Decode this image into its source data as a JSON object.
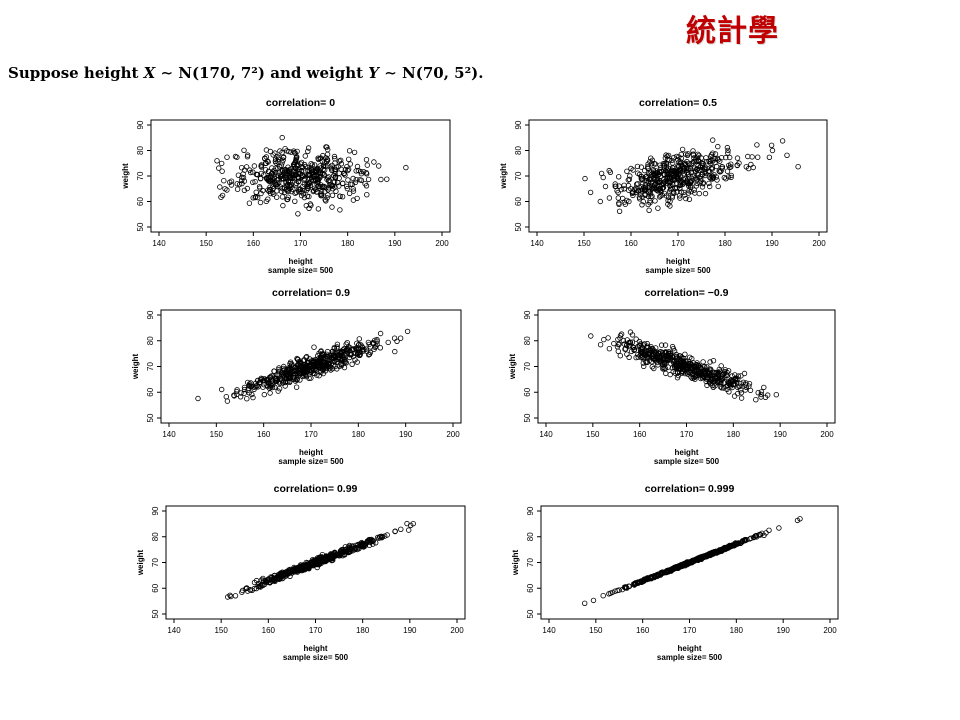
{
  "header": {
    "logo_text": "統計學",
    "statement": {
      "lead": "Suppose height",
      "x_var": "X",
      "x_dist": "∼ N(170, 7²)",
      "mid": "and weight",
      "y_var": "Y",
      "y_dist": "∼ N(70, 5²)."
    }
  },
  "colors": {
    "logo": "#c00000",
    "points": "#000000",
    "frame": "#000000"
  },
  "chart_data": [
    {
      "type": "scatter",
      "title": "correlation= 0",
      "correlation": 0,
      "xlabel": "height",
      "ylabel": "weight",
      "caption": "sample size= 500",
      "n": 500,
      "xlim": [
        140,
        200
      ],
      "ylim": [
        50,
        90
      ],
      "xticks": [
        140,
        150,
        160,
        170,
        180,
        190,
        200
      ],
      "yticks": [
        50,
        60,
        70,
        80,
        90
      ],
      "x_mean": 170,
      "x_sd": 7,
      "y_mean": 70,
      "y_sd": 5,
      "grid": false
    },
    {
      "type": "scatter",
      "title": "correlation= 0.5",
      "correlation": 0.5,
      "xlabel": "height",
      "ylabel": "weight",
      "caption": "sample size= 500",
      "n": 500,
      "xlim": [
        140,
        200
      ],
      "ylim": [
        50,
        90
      ],
      "xticks": [
        140,
        150,
        160,
        170,
        180,
        190,
        200
      ],
      "yticks": [
        50,
        60,
        70,
        80,
        90
      ],
      "x_mean": 170,
      "x_sd": 7,
      "y_mean": 70,
      "y_sd": 5,
      "grid": false
    },
    {
      "type": "scatter",
      "title": "correlation= 0.9",
      "correlation": 0.9,
      "xlabel": "height",
      "ylabel": "weight",
      "caption": "sample size= 500",
      "n": 500,
      "xlim": [
        140,
        200
      ],
      "ylim": [
        50,
        90
      ],
      "xticks": [
        140,
        150,
        160,
        170,
        180,
        190,
        200
      ],
      "yticks": [
        50,
        60,
        70,
        80,
        90
      ],
      "x_mean": 170,
      "x_sd": 7,
      "y_mean": 70,
      "y_sd": 5,
      "grid": false
    },
    {
      "type": "scatter",
      "title": "correlation= −0.9",
      "correlation": -0.9,
      "xlabel": "height",
      "ylabel": "weight",
      "caption": "sample size= 500",
      "n": 500,
      "xlim": [
        140,
        200
      ],
      "ylim": [
        50,
        90
      ],
      "xticks": [
        140,
        150,
        160,
        170,
        180,
        190,
        200
      ],
      "yticks": [
        50,
        60,
        70,
        80,
        90
      ],
      "x_mean": 170,
      "x_sd": 7,
      "y_mean": 70,
      "y_sd": 5,
      "grid": false
    },
    {
      "type": "scatter",
      "title": "correlation= 0.99",
      "correlation": 0.99,
      "xlabel": "height",
      "ylabel": "weight",
      "caption": "sample size= 500",
      "n": 500,
      "xlim": [
        140,
        200
      ],
      "ylim": [
        50,
        90
      ],
      "xticks": [
        140,
        150,
        160,
        170,
        180,
        190,
        200
      ],
      "yticks": [
        50,
        60,
        70,
        80,
        90
      ],
      "x_mean": 170,
      "x_sd": 7,
      "y_mean": 70,
      "y_sd": 5,
      "grid": false
    },
    {
      "type": "scatter",
      "title": "correlation= 0.999",
      "correlation": 0.999,
      "xlabel": "height",
      "ylabel": "weight",
      "caption": "sample size= 500",
      "n": 500,
      "xlim": [
        140,
        200
      ],
      "ylim": [
        50,
        90
      ],
      "xticks": [
        140,
        150,
        160,
        170,
        180,
        190,
        200
      ],
      "yticks": [
        50,
        60,
        70,
        80,
        90
      ],
      "x_mean": 170,
      "x_sd": 7,
      "y_mean": 70,
      "y_sd": 5,
      "grid": false
    }
  ]
}
